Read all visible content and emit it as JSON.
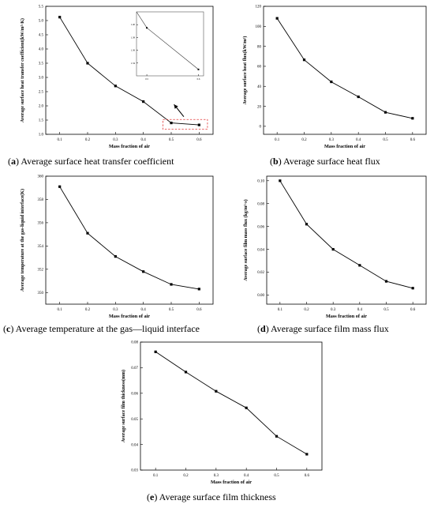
{
  "captions": [
    {
      "letter": "a",
      "text": "Average surface heat transfer coefficient"
    },
    {
      "letter": "b",
      "text": "Average surface heat flux"
    },
    {
      "letter": "c",
      "text": "Average temperature at the gas—liquid interface"
    },
    {
      "letter": "d",
      "text": "Average surface film mass flux"
    },
    {
      "letter": "e",
      "text": "Average surface film thickness"
    }
  ],
  "chart_data": [
    {
      "type": "line",
      "panel": "a",
      "xlabel": "Mass fraction of air",
      "ylabel": "Average surface heat transfer coefficient(kW/m²·K)",
      "x": [
        0.1,
        0.2,
        0.3,
        0.4,
        0.5,
        0.6
      ],
      "y": [
        5.12,
        3.5,
        2.7,
        2.15,
        1.4,
        1.33
      ],
      "xticks": [
        "0.1",
        "0.2",
        "0.3",
        "0.4",
        "0.5",
        "0.6"
      ],
      "yticks": [
        "1.0",
        "1.5",
        "2.0",
        "2.5",
        "3.0",
        "3.5",
        "4.0",
        "4.5",
        "5.0",
        "5.5"
      ],
      "xlim": [
        0.05,
        0.65
      ],
      "ylim": [
        1.0,
        5.5
      ],
      "inset": {
        "x": [
          0.48,
          0.5,
          0.6
        ],
        "y": [
          1.46,
          1.395,
          1.33
        ],
        "xticks": [
          "0.5",
          "0.6"
        ],
        "yticks": [
          "1.34",
          "1.36",
          "1.38",
          "1.40"
        ],
        "xlim": [
          0.48,
          0.61
        ],
        "ylim": [
          1.32,
          1.42
        ]
      }
    },
    {
      "type": "line",
      "panel": "b",
      "xlabel": "Mass fraction of air",
      "ylabel": "Average surface heat flux(kW/m²)",
      "x": [
        0.1,
        0.2,
        0.3,
        0.4,
        0.5,
        0.6
      ],
      "y": [
        108,
        66.5,
        44.5,
        29.5,
        14,
        8
      ],
      "xticks": [
        "0.1",
        "0.2",
        "0.3",
        "0.4",
        "0.5",
        "0.6"
      ],
      "yticks": [
        "0",
        "20",
        "40",
        "60",
        "80",
        "100",
        "120"
      ],
      "xlim": [
        0.05,
        0.65
      ],
      "ylim": [
        -8,
        120
      ]
    },
    {
      "type": "line",
      "panel": "c",
      "xlabel": "Mass fraction of air",
      "ylabel": "Average temperature at the gas-liquid interface(K)",
      "x": [
        0.1,
        0.2,
        0.3,
        0.4,
        0.5,
        0.6
      ],
      "y": [
        359.1,
        355.1,
        353.1,
        351.8,
        350.7,
        350.3
      ],
      "xticks": [
        "0.1",
        "0.2",
        "0.3",
        "0.4",
        "0.5",
        "0.6"
      ],
      "yticks": [
        "350",
        "352",
        "354",
        "356",
        "358",
        "360"
      ],
      "xlim": [
        0.05,
        0.65
      ],
      "ylim": [
        349,
        360
      ]
    },
    {
      "type": "line",
      "panel": "d",
      "xlabel": "Mass fraction of air",
      "ylabel": "Average surface film mass flux (kg/m²·s)",
      "x": [
        0.1,
        0.2,
        0.3,
        0.4,
        0.5,
        0.6
      ],
      "y": [
        0.1,
        0.062,
        0.04,
        0.026,
        0.012,
        0.006
      ],
      "xticks": [
        "0.1",
        "0.2",
        "0.3",
        "0.4",
        "0.5",
        "0.6"
      ],
      "yticks": [
        "0.00",
        "0.02",
        "0.04",
        "0.06",
        "0.08",
        "0.10"
      ],
      "xlim": [
        0.05,
        0.65
      ],
      "ylim": [
        -0.008,
        0.104
      ]
    },
    {
      "type": "line",
      "panel": "e",
      "xlabel": "Mass fraction of air",
      "ylabel": "Average surface film thickness(mm)",
      "x": [
        0.1,
        0.2,
        0.3,
        0.4,
        0.5,
        0.6
      ],
      "y": [
        0.0762,
        0.0683,
        0.0608,
        0.0543,
        0.0432,
        0.0362
      ],
      "xticks": [
        "0.1",
        "0.2",
        "0.3",
        "0.4",
        "0.5",
        "0.6"
      ],
      "yticks": [
        "0.03",
        "0.04",
        "0.05",
        "0.06",
        "0.07",
        "0.08"
      ],
      "xlim": [
        0.05,
        0.65
      ],
      "ylim": [
        0.03,
        0.08
      ]
    }
  ]
}
